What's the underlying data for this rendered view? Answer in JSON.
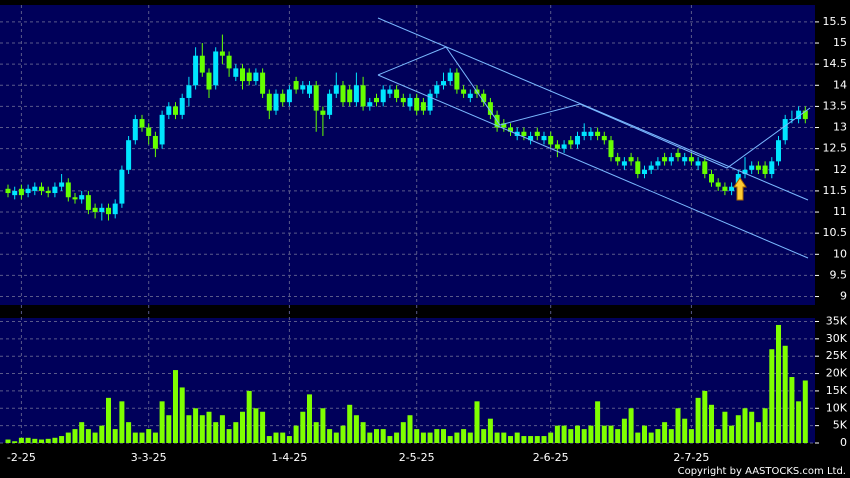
{
  "chart_data": [
    {
      "type": "candlestick",
      "categories": [
        null,
        null,
        "-2-25",
        null,
        null,
        null,
        null,
        null,
        null,
        null,
        null,
        null,
        null,
        null,
        null,
        null,
        null,
        null,
        null,
        null,
        null,
        "3-3-25",
        null,
        null,
        null,
        null,
        null,
        null,
        null,
        null,
        null,
        null,
        null,
        null,
        null,
        null,
        null,
        null,
        null,
        null,
        null,
        null,
        "1-4-25",
        null,
        null,
        null,
        null,
        null,
        null,
        null,
        null,
        null,
        null,
        null,
        null,
        null,
        null,
        null,
        null,
        null,
        null,
        "2-5-25",
        null,
        null,
        null,
        null,
        null,
        null,
        null,
        null,
        null,
        null,
        null,
        null,
        null,
        null,
        null,
        null,
        null,
        null,
        null,
        "2-6-25",
        null,
        null,
        null,
        null,
        null,
        null,
        null,
        null,
        null,
        null,
        null,
        null,
        null,
        null,
        null,
        null,
        null,
        null,
        null,
        null,
        "2-7-25",
        null,
        null,
        null,
        null,
        null,
        null,
        null,
        null,
        null,
        null,
        null,
        null,
        null,
        null,
        null,
        null,
        null
      ],
      "open": [
        11.55,
        11.4,
        11.55,
        11.45,
        11.5,
        11.6,
        11.5,
        11.45,
        11.6,
        11.7,
        11.35,
        11.3,
        11.4,
        11.1,
        11.0,
        11.1,
        10.95,
        11.2,
        12.0,
        12.7,
        13.2,
        13.0,
        12.8,
        12.6,
        13.3,
        13.5,
        13.3,
        13.7,
        14.0,
        14.7,
        14.3,
        14.0,
        14.8,
        14.7,
        14.2,
        14.4,
        14.3,
        14.1,
        14.3,
        13.8,
        13.4,
        13.8,
        13.6,
        14.1,
        13.9,
        13.8,
        14.0,
        13.4,
        13.3,
        13.8,
        14.0,
        13.9,
        13.6,
        14.0,
        13.5,
        13.7,
        13.6,
        13.8,
        13.9,
        13.7,
        13.5,
        13.7,
        13.6,
        13.4,
        13.8,
        14.0,
        14.1,
        14.3,
        13.9,
        13.7,
        13.9,
        13.8,
        13.6,
        13.3,
        13.1,
        13.0,
        12.8,
        12.9,
        12.7,
        12.9,
        12.7,
        12.8,
        12.6,
        12.5,
        12.7,
        12.6,
        12.8,
        12.8,
        12.9,
        12.8,
        12.7,
        12.3,
        12.1,
        12.3,
        12.2,
        11.9,
        12.0,
        12.1,
        12.3,
        12.2,
        12.4,
        12.2,
        12.3,
        12.1,
        12.2,
        11.9,
        11.7,
        11.6,
        11.5,
        11.6,
        11.9,
        12.0,
        12.1,
        12.1,
        11.9,
        12.2,
        12.7,
        13.2,
        13.2,
        13.4
      ],
      "high": [
        11.65,
        11.6,
        11.65,
        11.65,
        11.7,
        11.7,
        11.6,
        11.7,
        11.9,
        11.8,
        11.45,
        11.5,
        11.5,
        11.2,
        11.2,
        11.2,
        11.3,
        12.1,
        12.8,
        13.3,
        13.3,
        13.1,
        12.9,
        13.4,
        13.6,
        13.6,
        13.8,
        14.2,
        14.9,
        15.0,
        14.4,
        14.9,
        15.2,
        14.8,
        14.5,
        14.5,
        14.4,
        14.4,
        14.4,
        13.9,
        13.9,
        13.9,
        14.0,
        14.2,
        14.1,
        14.1,
        14.1,
        13.5,
        13.9,
        14.3,
        14.1,
        14.0,
        14.3,
        14.2,
        13.7,
        13.8,
        14.0,
        14.0,
        14.0,
        13.8,
        13.8,
        13.8,
        13.7,
        13.9,
        14.1,
        14.3,
        14.4,
        14.4,
        14.0,
        13.9,
        14.0,
        13.9,
        13.7,
        13.4,
        13.2,
        13.1,
        13.0,
        13.0,
        12.9,
        13.0,
        12.9,
        12.9,
        12.7,
        12.7,
        12.8,
        12.9,
        13.1,
        13.0,
        13.0,
        12.9,
        12.8,
        12.4,
        12.3,
        12.4,
        12.3,
        12.1,
        12.2,
        12.3,
        12.4,
        12.4,
        12.5,
        12.4,
        12.4,
        12.3,
        12.3,
        12.0,
        11.8,
        11.7,
        11.7,
        12.0,
        12.3,
        12.2,
        12.2,
        12.2,
        12.3,
        12.8,
        13.3,
        13.4,
        13.5,
        13.5
      ],
      "low": [
        11.35,
        11.3,
        11.3,
        11.35,
        11.4,
        11.4,
        11.35,
        11.35,
        11.5,
        11.25,
        11.2,
        11.2,
        10.95,
        10.85,
        10.8,
        10.8,
        10.85,
        11.1,
        11.9,
        12.6,
        12.9,
        12.6,
        12.3,
        12.5,
        13.2,
        13.2,
        13.2,
        13.5,
        13.9,
        14.2,
        13.7,
        13.9,
        14.5,
        14.2,
        14.1,
        13.9,
        14.0,
        14.0,
        13.7,
        13.2,
        13.3,
        13.5,
        13.5,
        13.8,
        13.8,
        13.7,
        12.9,
        12.8,
        13.2,
        13.7,
        13.5,
        13.5,
        13.5,
        13.4,
        13.4,
        13.5,
        13.5,
        13.7,
        13.6,
        13.5,
        13.4,
        13.3,
        13.3,
        13.3,
        13.7,
        13.9,
        14.0,
        13.8,
        13.7,
        13.6,
        13.7,
        13.5,
        13.2,
        12.9,
        12.9,
        12.8,
        12.7,
        12.7,
        12.6,
        12.7,
        12.6,
        12.5,
        12.3,
        12.4,
        12.5,
        12.5,
        12.7,
        12.7,
        12.7,
        12.6,
        12.2,
        12.1,
        12.0,
        12.1,
        11.8,
        11.8,
        11.9,
        12.0,
        12.1,
        12.1,
        12.2,
        12.1,
        12.1,
        12.0,
        11.8,
        11.6,
        11.5,
        11.4,
        11.4,
        11.5,
        11.8,
        11.9,
        11.9,
        11.8,
        11.8,
        12.1,
        12.6,
        13.1,
        13.1,
        13.1
      ],
      "close": [
        11.45,
        11.5,
        11.4,
        11.55,
        11.6,
        11.5,
        11.45,
        11.6,
        11.7,
        11.35,
        11.3,
        11.4,
        11.05,
        11.0,
        11.1,
        10.95,
        11.2,
        12.0,
        12.7,
        13.2,
        13.0,
        12.8,
        12.5,
        13.3,
        13.5,
        13.3,
        13.7,
        14.0,
        14.7,
        14.3,
        13.9,
        14.8,
        14.7,
        14.4,
        14.4,
        14.1,
        14.1,
        14.3,
        13.8,
        13.4,
        13.8,
        13.6,
        13.9,
        13.9,
        14.0,
        14.0,
        13.4,
        13.3,
        13.8,
        14.0,
        13.6,
        13.6,
        14.0,
        13.5,
        13.6,
        13.6,
        13.9,
        13.9,
        13.7,
        13.6,
        13.7,
        13.4,
        13.4,
        13.8,
        14.0,
        14.1,
        14.3,
        13.9,
        13.8,
        13.8,
        13.8,
        13.6,
        13.3,
        13.0,
        13.0,
        12.9,
        12.9,
        12.8,
        12.8,
        12.8,
        12.8,
        12.6,
        12.5,
        12.6,
        12.6,
        12.8,
        12.9,
        12.9,
        12.8,
        12.7,
        12.3,
        12.2,
        12.2,
        12.2,
        11.9,
        12.0,
        12.1,
        12.2,
        12.2,
        12.3,
        12.3,
        12.3,
        12.2,
        12.2,
        11.9,
        11.7,
        11.6,
        11.5,
        11.6,
        11.9,
        12.0,
        12.1,
        12.0,
        11.9,
        12.2,
        12.7,
        13.2,
        13.2,
        13.4,
        13.2
      ],
      "up_color": "#00e5ff",
      "down_color": "#66ff00",
      "ylim": [
        8.8,
        15.9
      ],
      "yticks": [
        9,
        9.5,
        10,
        10.5,
        11,
        11.5,
        12,
        12.5,
        13,
        13.5,
        14,
        14.5,
        15,
        15.5
      ],
      "grid": true
    },
    {
      "type": "bar",
      "values": [
        1000,
        500,
        1500,
        1500,
        1200,
        1000,
        1200,
        1500,
        2000,
        3000,
        4000,
        6000,
        4000,
        3000,
        5000,
        13000,
        4000,
        12000,
        6000,
        3000,
        3000,
        4000,
        3000,
        12000,
        8000,
        21000,
        16000,
        8000,
        10000,
        8000,
        9000,
        6000,
        8000,
        4000,
        6000,
        9000,
        15000,
        10000,
        9000,
        2000,
        3000,
        3000,
        2000,
        5000,
        9000,
        14000,
        6000,
        10000,
        4000,
        3000,
        5000,
        11000,
        8000,
        6000,
        3000,
        4000,
        4000,
        2000,
        3000,
        6000,
        8000,
        4000,
        3000,
        3000,
        4000,
        4000,
        2000,
        3000,
        4000,
        3000,
        12000,
        4000,
        7000,
        3000,
        3000,
        2000,
        3000,
        2000,
        2000,
        2000,
        2000,
        3000,
        5000,
        5000,
        4000,
        5000,
        4000,
        5000,
        12000,
        5000,
        5000,
        4000,
        7000,
        10000,
        3000,
        5000,
        3000,
        4000,
        6000,
        4000,
        10000,
        7000,
        4000,
        13000,
        15000,
        11000,
        4000,
        9000,
        5000,
        8000,
        10000,
        9000,
        6000,
        10000,
        27000,
        34000,
        28000,
        19000,
        12000,
        18000
      ],
      "color": "#7fff00",
      "ylim": [
        0,
        36000
      ],
      "yticks": [
        0,
        {
          "value": 5000,
          "label": "5K"
        },
        {
          "value": 10000,
          "label": "10K"
        },
        {
          "value": 15000,
          "label": "15K"
        },
        {
          "value": 20000,
          "label": "20K"
        },
        {
          "value": 25000,
          "label": "25K"
        },
        {
          "value": 30000,
          "label": "30K"
        },
        {
          "value": 35000,
          "label": "35K"
        }
      ],
      "grid": true
    }
  ],
  "copyright": "Copyright by AASTOCKS.com Ltd."
}
